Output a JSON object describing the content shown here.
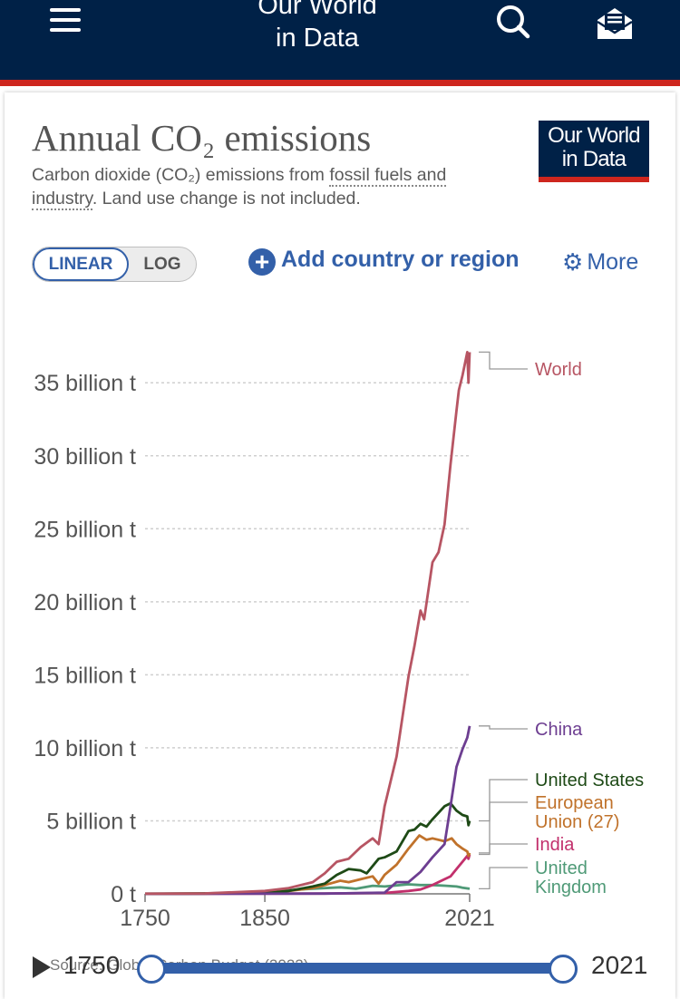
{
  "header": {
    "brand_line1": "Our World",
    "brand_line2": "in Data"
  },
  "title": "Annual CO₂ emissions",
  "subtitle": {
    "before": "Carbon dioxide (CO₂) emissions from ",
    "link": "fossil fuels and industry",
    "after": ". Land use change is not included."
  },
  "logo": {
    "line1": "Our World",
    "line2": "in Data"
  },
  "controls": {
    "linear_label": "LINEAR",
    "log_label": "LOG",
    "add_label": "Add country or region",
    "more_label": "More"
  },
  "colors": {
    "header_bg": "#002147",
    "accent_red": "#ce261e",
    "link_blue": "#3360a9"
  },
  "chart_data": {
    "type": "line",
    "title": "Annual CO₂ emissions",
    "ylim": [
      0,
      37
    ],
    "xlim": [
      1750,
      2021
    ],
    "x_ticks": [
      1750,
      1850,
      2021
    ],
    "y_ticks": [
      0,
      5,
      10,
      15,
      20,
      25,
      30,
      35
    ],
    "y_tick_labels": [
      "0 t",
      "5 billion t",
      "10 billion t",
      "15 billion t",
      "20 billion t",
      "25 billion t",
      "30 billion t",
      "35 billion t"
    ],
    "grid": "horizontal-dotted",
    "series": [
      {
        "name": "World",
        "color": "#b75563",
        "label_lines": [
          "World"
        ],
        "points": [
          [
            1750,
            0.01
          ],
          [
            1800,
            0.03
          ],
          [
            1850,
            0.2
          ],
          [
            1870,
            0.4
          ],
          [
            1890,
            0.8
          ],
          [
            1900,
            1.4
          ],
          [
            1910,
            2.2
          ],
          [
            1920,
            2.4
          ],
          [
            1930,
            3.2
          ],
          [
            1940,
            3.8
          ],
          [
            1945,
            3.4
          ],
          [
            1950,
            6.0
          ],
          [
            1960,
            9.4
          ],
          [
            1970,
            14.9
          ],
          [
            1975,
            17.0
          ],
          [
            1980,
            19.4
          ],
          [
            1983,
            18.8
          ],
          [
            1990,
            22.7
          ],
          [
            1995,
            23.4
          ],
          [
            2000,
            25.3
          ],
          [
            2005,
            29.4
          ],
          [
            2010,
            33.1
          ],
          [
            2012,
            34.5
          ],
          [
            2015,
            35.5
          ],
          [
            2019,
            37.1
          ],
          [
            2020,
            35.0
          ],
          [
            2021,
            37.1
          ]
        ]
      },
      {
        "name": "China",
        "color": "#6d3e91",
        "label_lines": [
          "China"
        ],
        "points": [
          [
            1750,
            0
          ],
          [
            1900,
            0.02
          ],
          [
            1950,
            0.08
          ],
          [
            1960,
            0.8
          ],
          [
            1970,
            0.8
          ],
          [
            1980,
            1.5
          ],
          [
            1990,
            2.5
          ],
          [
            2000,
            3.4
          ],
          [
            2005,
            6.0
          ],
          [
            2010,
            8.7
          ],
          [
            2015,
            9.9
          ],
          [
            2019,
            10.7
          ],
          [
            2021,
            11.5
          ]
        ]
      },
      {
        "name": "United States",
        "color": "#1e4a16",
        "label_lines": [
          "United States"
        ],
        "points": [
          [
            1750,
            0
          ],
          [
            1850,
            0.05
          ],
          [
            1870,
            0.2
          ],
          [
            1890,
            0.5
          ],
          [
            1900,
            0.7
          ],
          [
            1910,
            1.3
          ],
          [
            1920,
            1.7
          ],
          [
            1930,
            1.6
          ],
          [
            1935,
            1.4
          ],
          [
            1945,
            2.4
          ],
          [
            1950,
            2.5
          ],
          [
            1960,
            2.9
          ],
          [
            1970,
            4.3
          ],
          [
            1975,
            4.4
          ],
          [
            1980,
            4.8
          ],
          [
            1985,
            4.6
          ],
          [
            1990,
            5.1
          ],
          [
            2000,
            6.0
          ],
          [
            2005,
            6.2
          ],
          [
            2010,
            5.7
          ],
          [
            2015,
            5.4
          ],
          [
            2019,
            5.3
          ],
          [
            2020,
            4.7
          ],
          [
            2021,
            5.0
          ]
        ]
      },
      {
        "name": "European Union (27)",
        "color": "#c0722b",
        "label_lines": [
          "European",
          "Union (27)"
        ],
        "points": [
          [
            1750,
            0
          ],
          [
            1800,
            0.01
          ],
          [
            1850,
            0.1
          ],
          [
            1870,
            0.2
          ],
          [
            1890,
            0.4
          ],
          [
            1900,
            0.6
          ],
          [
            1913,
            0.9
          ],
          [
            1920,
            0.8
          ],
          [
            1930,
            1.0
          ],
          [
            1940,
            1.2
          ],
          [
            1945,
            0.7
          ],
          [
            1950,
            1.3
          ],
          [
            1960,
            2.0
          ],
          [
            1970,
            3.1
          ],
          [
            1979,
            4.0
          ],
          [
            1985,
            3.7
          ],
          [
            1990,
            3.8
          ],
          [
            2000,
            3.6
          ],
          [
            2006,
            3.8
          ],
          [
            2010,
            3.4
          ],
          [
            2015,
            3.1
          ],
          [
            2019,
            2.9
          ],
          [
            2020,
            2.6
          ],
          [
            2021,
            2.8
          ]
        ]
      },
      {
        "name": "India",
        "color": "#c2306c",
        "label_lines": [
          "India"
        ],
        "points": [
          [
            1750,
            0
          ],
          [
            1900,
            0.02
          ],
          [
            1950,
            0.06
          ],
          [
            1970,
            0.2
          ],
          [
            1980,
            0.3
          ],
          [
            1990,
            0.6
          ],
          [
            2000,
            1.0
          ],
          [
            2005,
            1.2
          ],
          [
            2010,
            1.7
          ],
          [
            2015,
            2.2
          ],
          [
            2019,
            2.6
          ],
          [
            2020,
            2.4
          ],
          [
            2021,
            2.7
          ]
        ]
      },
      {
        "name": "United Kingdom",
        "color": "#4f9a77",
        "label_lines": [
          "United",
          "Kingdom"
        ],
        "points": [
          [
            1750,
            0.01
          ],
          [
            1800,
            0.03
          ],
          [
            1830,
            0.08
          ],
          [
            1850,
            0.12
          ],
          [
            1870,
            0.25
          ],
          [
            1890,
            0.35
          ],
          [
            1913,
            0.45
          ],
          [
            1926,
            0.35
          ],
          [
            1940,
            0.55
          ],
          [
            1950,
            0.5
          ],
          [
            1960,
            0.58
          ],
          [
            1970,
            0.65
          ],
          [
            1980,
            0.6
          ],
          [
            1990,
            0.6
          ],
          [
            2000,
            0.56
          ],
          [
            2010,
            0.5
          ],
          [
            2015,
            0.42
          ],
          [
            2019,
            0.37
          ],
          [
            2021,
            0.35
          ]
        ]
      }
    ]
  },
  "timeline": {
    "start_label": "1750",
    "end_label": "2021",
    "source_text": "Source: Global Carbon Budget (2022)"
  }
}
